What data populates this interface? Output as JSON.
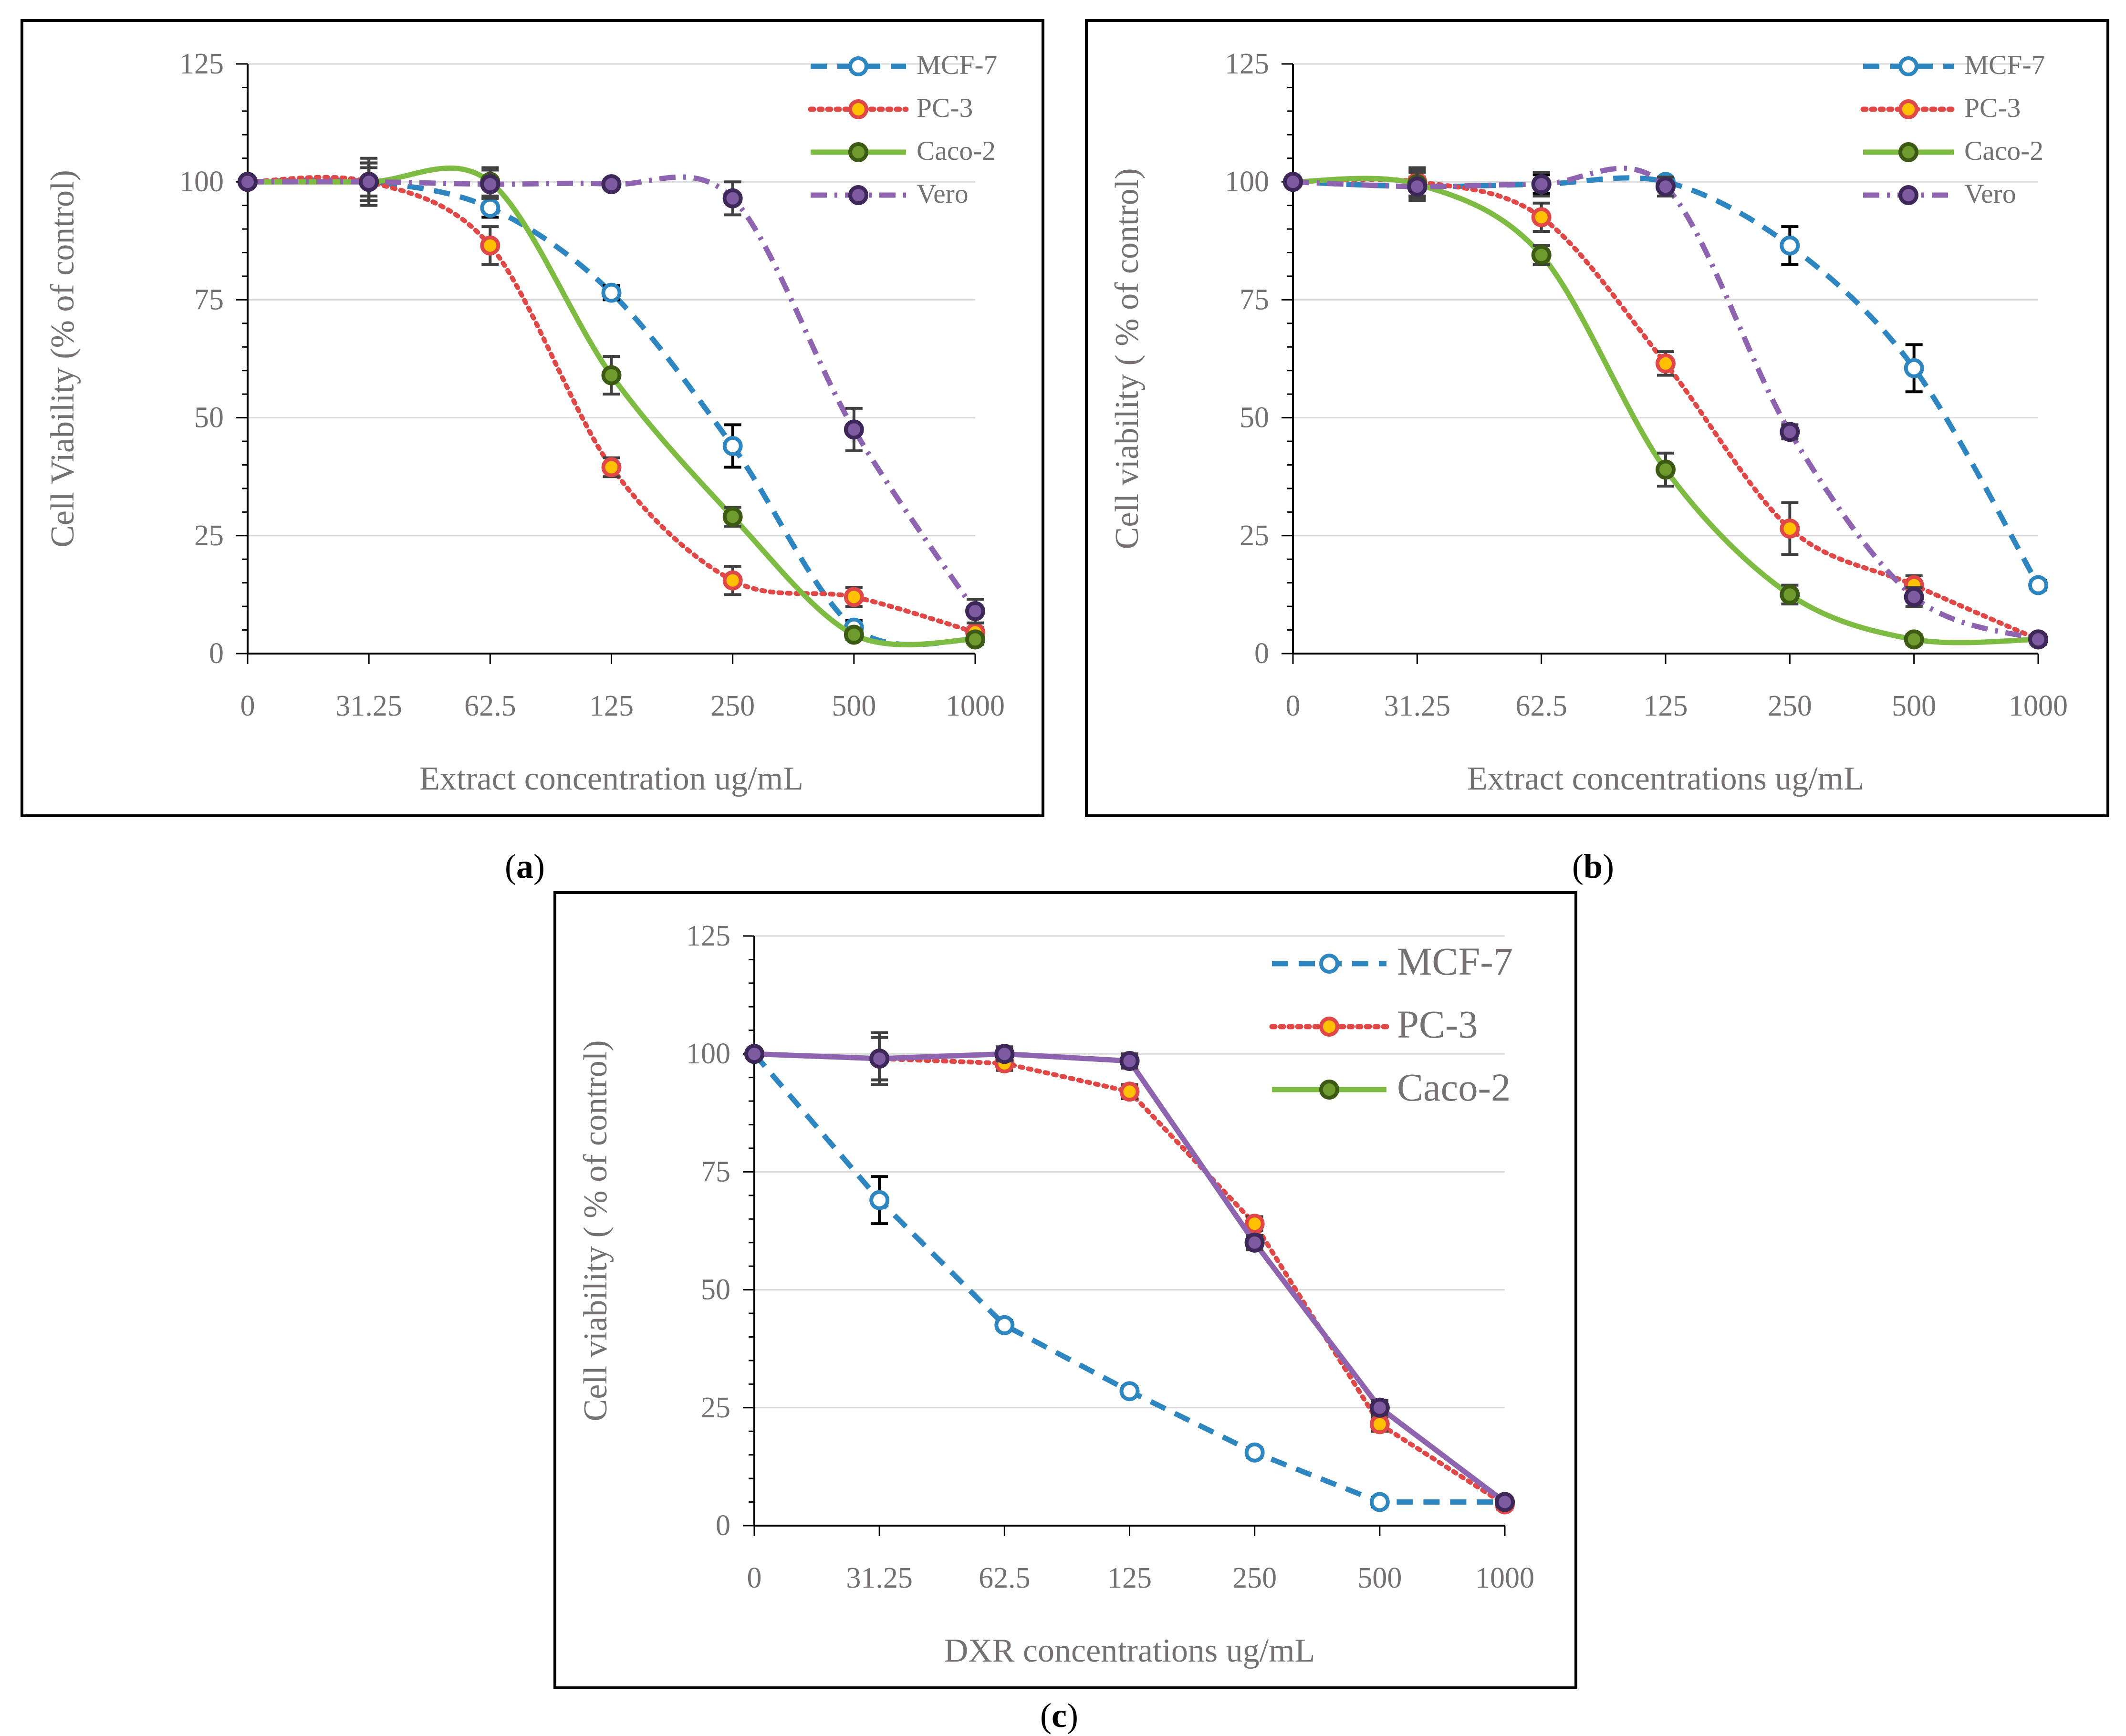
{
  "chart_data": [
    {
      "panel": "a",
      "type": "line",
      "caption_letter": "a",
      "xlabel": "Extract concentration ug/mL",
      "ylabel": "Cell Viability (% of control)",
      "categories": [
        "0",
        "31.25",
        "62.5",
        "125",
        "250",
        "500",
        "1000"
      ],
      "ylim": [
        0,
        125
      ],
      "yticks": [
        0,
        25,
        50,
        75,
        100,
        125
      ],
      "grid": true,
      "legend_position": "top-right",
      "series": [
        {
          "name": "MCF-7",
          "style": "dash",
          "color": "#2E86C1",
          "marker": "#2E86C1",
          "fill": "#ffffff",
          "values": [
            100,
            100,
            94.5,
            76.5,
            44,
            5.5,
            3
          ],
          "errors": [
            0,
            4,
            2,
            1.5,
            4.5,
            1.5,
            1
          ]
        },
        {
          "name": "PC-3",
          "style": "dot",
          "color": "#E04848",
          "marker": "#E04848",
          "fill": "#FFC000",
          "values": [
            100,
            100,
            86.5,
            39.5,
            15.5,
            12,
            4.5
          ],
          "errors": [
            0,
            3,
            4,
            2,
            3,
            2,
            1
          ]
        },
        {
          "name": "Caco-2",
          "style": "solid",
          "color": "#7DBB42",
          "marker": "#3C5A14",
          "fill": "#6E9A2E",
          "values": [
            100,
            100,
            100,
            59,
            29,
            4,
            3
          ],
          "errors": [
            0,
            4,
            3,
            4,
            2,
            1,
            1
          ]
        },
        {
          "name": "Vero",
          "style": "dashdot",
          "color": "#8E63B0",
          "marker": "#3E2759",
          "fill": "#7E5AA0",
          "values": [
            100,
            100,
            99.5,
            99.5,
            96.5,
            47.5,
            9
          ],
          "errors": [
            0,
            5,
            3,
            1,
            3.5,
            4.5,
            2.5
          ]
        }
      ]
    },
    {
      "panel": "b",
      "type": "line",
      "caption_letter": "b",
      "xlabel": "Extract concentrations ug/mL",
      "ylabel": "Cell viability ( % of control)",
      "categories": [
        "0",
        "31.25",
        "62.5",
        "125",
        "250",
        "500",
        "1000"
      ],
      "ylim": [
        0,
        125
      ],
      "yticks": [
        0,
        25,
        50,
        75,
        100,
        125
      ],
      "grid": true,
      "legend_position": "top-right",
      "series": [
        {
          "name": "MCF-7",
          "style": "dash",
          "color": "#2E86C1",
          "marker": "#2E86C1",
          "fill": "#ffffff",
          "values": [
            100,
            99,
            99.5,
            100,
            86.5,
            60.5,
            14.5
          ],
          "errors": [
            0,
            2,
            2,
            1,
            4,
            5,
            1
          ]
        },
        {
          "name": "PC-3",
          "style": "dot",
          "color": "#E04848",
          "marker": "#E04848",
          "fill": "#FFC000",
          "values": [
            100,
            100,
            92.5,
            61.5,
            26.5,
            14.5,
            3
          ],
          "errors": [
            0,
            3,
            3,
            2.5,
            5.5,
            2,
            1
          ]
        },
        {
          "name": "Caco-2",
          "style": "solid",
          "color": "#7DBB42",
          "marker": "#3C5A14",
          "fill": "#6E9A2E",
          "values": [
            100,
            99.5,
            84.5,
            39,
            12.5,
            3,
            3
          ],
          "errors": [
            0,
            3,
            2,
            3.5,
            2,
            1,
            1
          ]
        },
        {
          "name": "Vero",
          "style": "dashdot",
          "color": "#8E63B0",
          "marker": "#3E2759",
          "fill": "#7E5AA0",
          "values": [
            100,
            99,
            99.5,
            99,
            47,
            12,
            3
          ],
          "errors": [
            0,
            3,
            2.5,
            2,
            1.5,
            2,
            1
          ]
        }
      ]
    },
    {
      "panel": "c",
      "type": "line",
      "caption_letter": "c",
      "xlabel": "DXR concentrations ug/mL",
      "ylabel": "Cell viability ( % of control)",
      "categories": [
        "0",
        "31.25",
        "62.5",
        "125",
        "250",
        "500",
        "1000"
      ],
      "ylim": [
        0,
        125
      ],
      "yticks": [
        0,
        25,
        50,
        75,
        100,
        125
      ],
      "grid": true,
      "legend_position": "top-right",
      "series": [
        {
          "name": "MCF-7",
          "style": "dash",
          "color": "#2E86C1",
          "marker": "#2E86C1",
          "fill": "#ffffff",
          "values": [
            100,
            69,
            42.5,
            28.5,
            15.5,
            5,
            5
          ],
          "errors": [
            0,
            5,
            1,
            1,
            1,
            1,
            1
          ]
        },
        {
          "name": "PC-3",
          "style": "dot",
          "color": "#E04848",
          "marker": "#E04848",
          "fill": "#FFC000",
          "values": [
            100,
            99,
            98,
            92,
            64,
            21.5,
            4.5
          ],
          "errors": [
            0,
            5.5,
            1.5,
            1.5,
            1.5,
            1.5,
            1
          ]
        },
        {
          "name": "Caco-2",
          "style": "solid",
          "color": "#7DBB42",
          "marker": "#3C5A14",
          "fill": "#6E9A2E",
          "values": [
            100,
            99,
            100,
            98.5,
            60,
            25,
            5
          ],
          "errors": [
            0,
            4.5,
            1.5,
            1.5,
            1.5,
            1.5,
            1
          ]
        },
        {
          "name": "",
          "style": "solid",
          "color": "#8E63B0",
          "marker": "#3E2759",
          "fill": "#7E5AA0",
          "values": [
            100,
            99,
            100,
            98.5,
            60,
            25,
            5
          ],
          "errors": [
            0,
            4.5,
            1.5,
            1.5,
            1.5,
            1.5,
            1
          ],
          "legend": false
        }
      ]
    }
  ]
}
